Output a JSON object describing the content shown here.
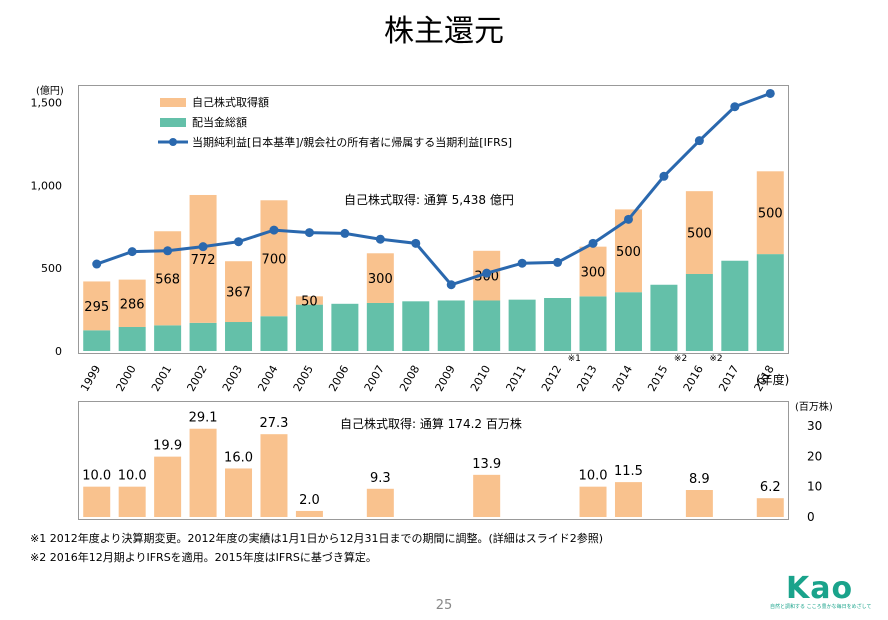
{
  "page": {
    "title": "株主還元",
    "note1": "※1 2012年度より決算期変更。2012年度の実績は1月1日から12月31日までの期間に調整。(詳細はスライド2参照)",
    "note2": "※2 2016年12月期よりIFRSを適用。2015年度はIFRSに基づき算定。",
    "page_number": "25",
    "logo_text": "Kao",
    "slogan": "自然と調和する こころ豊かな毎日をめざして"
  },
  "colors": {
    "buyback": "#f9c28e",
    "dividend": "#64c0a9",
    "line": "#2a68ae",
    "line_fill": "#ffffff"
  },
  "chart_data": [
    {
      "type": "bar",
      "stacked": true,
      "unit_label": "(億円)",
      "xlabel": "(年度)",
      "ylim": [
        0,
        1600
      ],
      "yticks": [
        "0",
        "500",
        "1,000",
        "1,500"
      ],
      "ytick_values": [
        0,
        500,
        1000,
        1500
      ],
      "categories": [
        "1999",
        "2000",
        "2001",
        "2002",
        "2003",
        "2004",
        "2005",
        "2006",
        "2007",
        "2008",
        "2009",
        "2010",
        "2011",
        "2012",
        "2013",
        "2014",
        "2015",
        "2016",
        "2017",
        "2018"
      ],
      "category_marks": [
        "",
        "",
        "",
        "",
        "",
        "",
        "",
        "",
        "",
        "",
        "",
        "",
        "",
        "※1",
        "",
        "",
        "※2",
        "※2",
        "",
        ""
      ],
      "legend_placement": "top-left",
      "series": [
        {
          "name": "自己株式取得額",
          "kind": "bar",
          "values": [
            295,
            286,
            568,
            772,
            367,
            700,
            50,
            0,
            300,
            0,
            0,
            300,
            0,
            0,
            300,
            500,
            0,
            500,
            0,
            500
          ],
          "labels": [
            "295",
            "286",
            "568",
            "772",
            "367",
            "700",
            "50",
            "",
            "300",
            "",
            "",
            "300",
            "",
            "",
            "300",
            "500",
            "",
            "500",
            "",
            "500"
          ]
        },
        {
          "name": "配当金総額",
          "kind": "bar",
          "values": [
            125,
            145,
            155,
            170,
            175,
            210,
            280,
            285,
            290,
            300,
            305,
            305,
            310,
            320,
            330,
            355,
            400,
            465,
            545,
            585
          ]
        },
        {
          "name": "当期純利益[日本基準]/親会社の所有者に帰属する当期利益[IFRS]",
          "kind": "line",
          "values": [
            525,
            600,
            605,
            630,
            660,
            730,
            715,
            710,
            675,
            650,
            400,
            470,
            530,
            535,
            650,
            795,
            1055,
            1270,
            1475,
            1555
          ]
        }
      ],
      "annotation": "自己株式取得:  通算   5,438  億円"
    },
    {
      "type": "bar",
      "unit_label": "(百万株)",
      "ylim": [
        0,
        30
      ],
      "yticks": [
        "0",
        "10",
        "20",
        "30"
      ],
      "ytick_values": [
        0,
        10,
        20,
        30
      ],
      "values": [
        10.0,
        10.0,
        19.9,
        29.1,
        16.0,
        27.3,
        2.0,
        null,
        9.3,
        null,
        null,
        13.9,
        null,
        null,
        10.0,
        11.5,
        null,
        8.9,
        null,
        6.2
      ],
      "labels": [
        "10.0",
        "10.0",
        "19.9",
        "29.1",
        "16.0",
        "27.3",
        "2.0",
        "",
        "9.3",
        "",
        "",
        "13.9",
        "",
        "",
        "10.0",
        "11.5",
        "",
        "8.9",
        "",
        "6.2"
      ],
      "annotation": "自己株式取得:  通算    174.2  百万株"
    }
  ]
}
